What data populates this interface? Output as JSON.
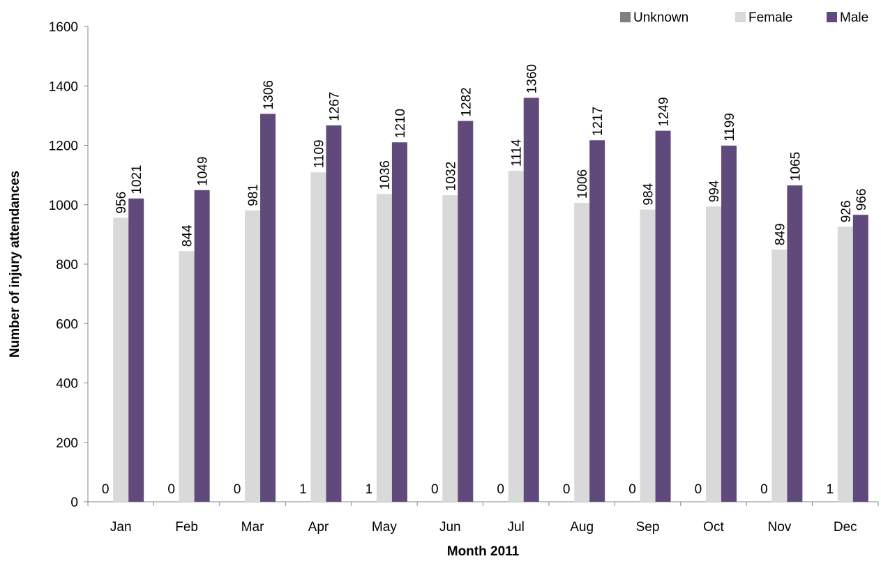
{
  "chart_data": {
    "type": "bar",
    "categories": [
      "Jan",
      "Feb",
      "Mar",
      "Apr",
      "May",
      "Jun",
      "Jul",
      "Aug",
      "Sep",
      "Oct",
      "Nov",
      "Dec"
    ],
    "series": [
      {
        "name": "Unknown",
        "color": "#808080",
        "values": [
          0,
          0,
          0,
          1,
          1,
          0,
          0,
          0,
          0,
          0,
          0,
          1
        ]
      },
      {
        "name": "Female",
        "color": "#d9d9d9",
        "values": [
          956,
          844,
          981,
          1109,
          1036,
          1032,
          1114,
          1006,
          984,
          994,
          849,
          926
        ]
      },
      {
        "name": "Male",
        "color": "#604a7b",
        "values": [
          1021,
          1049,
          1306,
          1267,
          1210,
          1282,
          1360,
          1217,
          1249,
          1199,
          1065,
          966
        ]
      }
    ],
    "xlabel": "Month 2011",
    "ylabel": "Number of injury attendances",
    "ylim": [
      0,
      1600
    ],
    "yticks": [
      0,
      200,
      400,
      600,
      800,
      1000,
      1200,
      1400,
      1600
    ],
    "legend_position": "top-right",
    "grid": false
  }
}
